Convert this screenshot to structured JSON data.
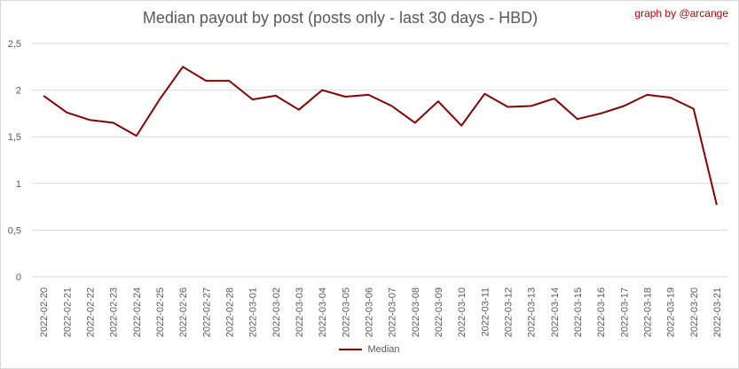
{
  "chart_data": {
    "type": "line",
    "title": "Median payout by post (posts only - last 30 days - HBD)",
    "credit": "graph by @arcange",
    "ylim": [
      0,
      2.5
    ],
    "yticks": [
      "0",
      "0,5",
      "1",
      "1,5",
      "2",
      "2,5"
    ],
    "ytick_values": [
      0,
      0.5,
      1,
      1.5,
      2,
      2.5
    ],
    "grid": true,
    "legend_position": "bottom",
    "line_color": "#8b0000",
    "categories": [
      "2022-02-20",
      "2022-02-21",
      "2022-02-22",
      "2022-02-23",
      "2022-02-24",
      "2022-02-25",
      "2022-02-26",
      "2022-02-27",
      "2022-02-28",
      "2022-03-01",
      "2022-03-02",
      "2022-03-03",
      "2022-03-04",
      "2022-03-05",
      "2022-03-06",
      "2022-03-07",
      "2022-03-08",
      "2022-03-09",
      "2022-03-10",
      "2022-03-11",
      "2022-03-12",
      "2022-03-13",
      "2022-03-14",
      "2022-03-15",
      "2022-03-16",
      "2022-03-17",
      "2022-03-18",
      "2022-03-19",
      "2022-03-20",
      "2022-03-21"
    ],
    "series": [
      {
        "name": "Median",
        "values": [
          1.94,
          1.76,
          1.68,
          1.65,
          1.51,
          1.9,
          2.25,
          2.1,
          2.1,
          1.9,
          1.94,
          1.79,
          2.0,
          1.93,
          1.95,
          1.83,
          1.65,
          1.88,
          1.62,
          1.96,
          1.82,
          1.83,
          1.91,
          1.69,
          1.75,
          1.83,
          1.95,
          1.92,
          1.8,
          0.77
        ]
      }
    ]
  }
}
